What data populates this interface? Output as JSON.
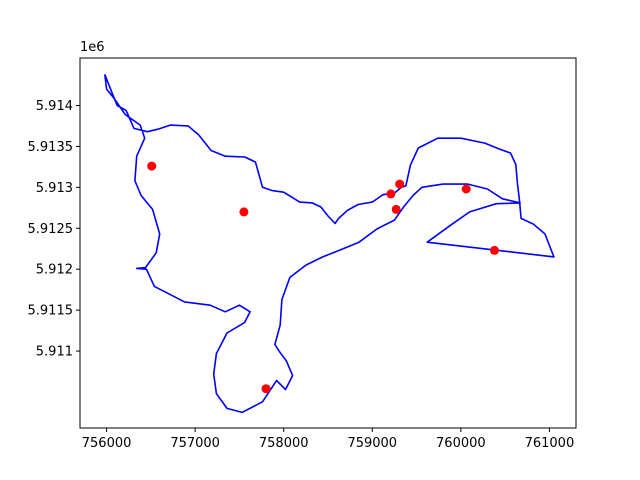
{
  "chart_data": {
    "type": "scatter",
    "title": "",
    "xlabel": "",
    "ylabel": "",
    "y_offset_label": "1e6",
    "xlim": [
      755700,
      761300
    ],
    "ylim": [
      5910060,
      5914580
    ],
    "grid": false,
    "legend": "none",
    "x_ticks": [
      756000,
      757000,
      758000,
      759000,
      760000,
      761000
    ],
    "x_tick_labels": [
      "756000",
      "757000",
      "758000",
      "759000",
      "760000",
      "761000"
    ],
    "y_ticks": [
      5911000,
      5911500,
      5912000,
      5912500,
      5913000,
      5913500,
      5914000
    ],
    "y_tick_labels": [
      "5.911",
      "5.9115",
      "5.912",
      "5.9125",
      "5.913",
      "5.9135",
      "5.914"
    ],
    "boundary_color": "#0000ff",
    "point_color": "#ff0000",
    "boundary": [
      [
        755980,
        5914380
      ],
      [
        756060,
        5914160
      ],
      [
        756120,
        5914000
      ],
      [
        756220,
        5913940
      ],
      [
        756310,
        5913720
      ],
      [
        756460,
        5913680
      ],
      [
        756580,
        5913710
      ],
      [
        756720,
        5913760
      ],
      [
        756920,
        5913750
      ],
      [
        757040,
        5913640
      ],
      [
        757180,
        5913450
      ],
      [
        757340,
        5913380
      ],
      [
        757560,
        5913370
      ],
      [
        757680,
        5913310
      ],
      [
        757730,
        5913120
      ],
      [
        757760,
        5913000
      ],
      [
        757870,
        5912960
      ],
      [
        758000,
        5912940
      ],
      [
        758180,
        5912820
      ],
      [
        758320,
        5912810
      ],
      [
        758420,
        5912760
      ],
      [
        758500,
        5912650
      ],
      [
        758580,
        5912560
      ],
      [
        758620,
        5912620
      ],
      [
        758720,
        5912720
      ],
      [
        758840,
        5912790
      ],
      [
        759000,
        5912820
      ],
      [
        759120,
        5912910
      ],
      [
        759250,
        5912930
      ],
      [
        759330,
        5913000
      ],
      [
        759380,
        5913020
      ],
      [
        759430,
        5913270
      ],
      [
        759520,
        5913480
      ],
      [
        759740,
        5913600
      ],
      [
        760000,
        5913600
      ],
      [
        760270,
        5913540
      ],
      [
        760430,
        5913470
      ],
      [
        760560,
        5913420
      ],
      [
        760620,
        5913280
      ],
      [
        760640,
        5913040
      ],
      [
        760660,
        5912860
      ],
      [
        760680,
        5912620
      ],
      [
        760820,
        5912550
      ],
      [
        760950,
        5912430
      ],
      [
        761050,
        5912150
      ],
      [
        759620,
        5912330
      ],
      [
        759900,
        5912550
      ],
      [
        760100,
        5912700
      ],
      [
        760400,
        5912800
      ],
      [
        760670,
        5912810
      ],
      [
        760470,
        5912860
      ],
      [
        760300,
        5912980
      ],
      [
        760080,
        5913040
      ],
      [
        759800,
        5913040
      ],
      [
        759560,
        5913000
      ],
      [
        759460,
        5912900
      ],
      [
        759360,
        5912770
      ],
      [
        759250,
        5912600
      ],
      [
        759050,
        5912490
      ],
      [
        758850,
        5912330
      ],
      [
        758650,
        5912240
      ],
      [
        758440,
        5912150
      ],
      [
        758250,
        5912050
      ],
      [
        758070,
        5911900
      ],
      [
        757980,
        5911630
      ],
      [
        757960,
        5911320
      ],
      [
        757900,
        5911080
      ],
      [
        757960,
        5910980
      ],
      [
        758030,
        5910880
      ],
      [
        758100,
        5910700
      ],
      [
        758020,
        5910530
      ],
      [
        757920,
        5910640
      ],
      [
        757760,
        5910380
      ],
      [
        757530,
        5910250
      ],
      [
        757360,
        5910300
      ],
      [
        757240,
        5910480
      ],
      [
        757210,
        5910720
      ],
      [
        757240,
        5910970
      ],
      [
        757360,
        5911220
      ],
      [
        757560,
        5911350
      ],
      [
        757620,
        5911480
      ],
      [
        757500,
        5911560
      ],
      [
        757340,
        5911480
      ],
      [
        757170,
        5911560
      ],
      [
        756880,
        5911600
      ],
      [
        756720,
        5911690
      ],
      [
        756540,
        5911790
      ],
      [
        756450,
        5912000
      ],
      [
        756340,
        5912010
      ],
      [
        756440,
        5912020
      ],
      [
        756560,
        5912200
      ],
      [
        756600,
        5912430
      ],
      [
        756520,
        5912730
      ],
      [
        756390,
        5912900
      ],
      [
        756320,
        5913080
      ],
      [
        756340,
        5913380
      ],
      [
        756430,
        5913600
      ],
      [
        756380,
        5913760
      ],
      [
        756210,
        5913890
      ],
      [
        756090,
        5914080
      ],
      [
        756000,
        5914200
      ],
      [
        755980,
        5914380
      ]
    ],
    "points": [
      {
        "x": 756510,
        "y": 5913260
      },
      {
        "x": 757550,
        "y": 5912700
      },
      {
        "x": 759210,
        "y": 5912920
      },
      {
        "x": 759310,
        "y": 5913040
      },
      {
        "x": 759270,
        "y": 5912730
      },
      {
        "x": 760060,
        "y": 5912980
      },
      {
        "x": 760380,
        "y": 5912230
      },
      {
        "x": 757800,
        "y": 5910540
      }
    ]
  }
}
